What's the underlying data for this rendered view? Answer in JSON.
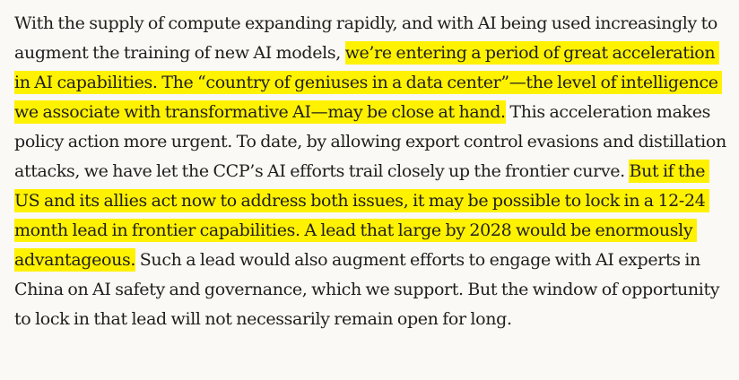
{
  "article": {
    "segments": [
      {
        "text": "With the supply of compute expanding rapidly, and with AI being used increasingly to augment the training of new AI models, ",
        "highlighted": false
      },
      {
        "text": "we’re entering a period of great acceleration in AI capabilities. The “country of geniuses in a data center”—the level of intelligence we associate with transformative AI—may be close at hand.",
        "highlighted": true
      },
      {
        "text": " This acceleration makes policy action more urgent. To date, by allowing export control evasions and distillation attacks, we have let the CCP’s AI efforts trail closely up the frontier curve. ",
        "highlighted": false
      },
      {
        "text": "But if the US and its allies act now to address both issues, it may be possible to lock in a 12-24 month lead in frontier capabilities. A lead that large by 2028 would be enormously advantageous.",
        "highlighted": true
      },
      {
        "text": " Such a lead would also augment efforts to engage with AI experts in China on AI safety and governance, which we support. But the window of opportunity to lock in that lead will not necessarily remain open for long.",
        "highlighted": false
      }
    ],
    "highlight_color": "#fff200",
    "text_color": "#1f1e1d",
    "background_color": "#faf9f5"
  }
}
